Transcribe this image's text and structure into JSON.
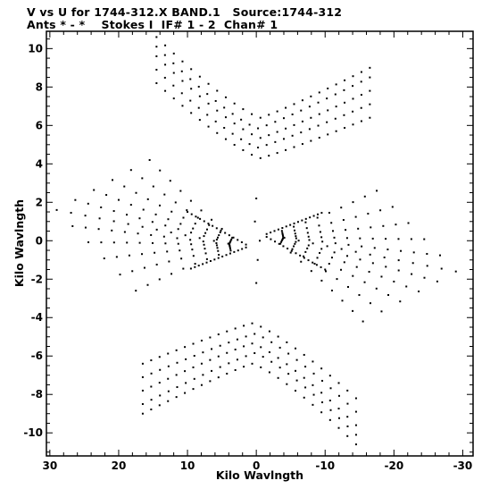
{
  "header": {
    "title_line1": "V vs U for 1744-312.X BAND.1   Source:1744-312",
    "title_line2": "Ants * - *    Stokes I  IF# 1 - 2  Chan# 1"
  },
  "chart_data": {
    "type": "scatter",
    "title": "V vs U for 1744-312.X BAND.1   Source:1744-312",
    "subtitle": "Ants * - *    Stokes I  IF# 1 - 2  Chan# 1",
    "xlabel": "Kilo Wavlngth",
    "ylabel": "Kilo Wavlngth",
    "xlim": [
      30.5,
      -31.5
    ],
    "ylim": [
      -11.2,
      10.9
    ],
    "x_reversed": true,
    "grid": false,
    "marker": "small black dots",
    "xticks": [
      30,
      20,
      10,
      0,
      -10,
      -20,
      -30
    ],
    "xtick_labels": [
      "30",
      "20",
      "10",
      "0",
      "-10",
      "-20",
      "-30"
    ],
    "yticks": [
      10,
      8,
      6,
      4,
      2,
      0,
      -2,
      -4,
      -6,
      -8,
      -10
    ],
    "ytick_labels": [
      "10",
      "8",
      "6",
      "4",
      "2",
      "0",
      "-2",
      "-4",
      "-6",
      "-8",
      "-10"
    ],
    "features": {
      "upper_arcs": {
        "description": "nested V-shaped tracks, vertex near u=0",
        "vertices_v": [
          4.3,
          4.85,
          5.35,
          5.85,
          6.4
        ],
        "left_end_u": 14.5,
        "left_end_v": [
          8.2,
          8.9,
          9.6,
          10.1,
          10.6
        ],
        "right_end_u": -16.5,
        "right_end_v": [
          6.4,
          7.1,
          7.8,
          8.5,
          9.0
        ]
      },
      "lower_arcs": {
        "description": "mirror of upper arcs through origin",
        "vertices_v": [
          -4.3,
          -4.85,
          -5.35,
          -5.85,
          -6.4
        ],
        "left_end_u": 16.5,
        "left_end_v": [
          -9.0,
          -8.5,
          -7.8,
          -7.1,
          -6.4
        ],
        "right_end_u": -14.5,
        "right_end_v": [
          -10.6,
          -10.1,
          -9.6,
          -8.9,
          -8.2
        ]
      },
      "left_lobe": {
        "description": "diamond-shaped fan of dotted radial tracks",
        "apex_u": 2.0,
        "apex_v": -0.3,
        "outer_left_u": 29.5,
        "outer_left_v": [
          1.2,
          1.9
        ],
        "top_u": 15.5,
        "top_v": 4.2,
        "bottom_u": 17.5,
        "bottom_v": -2.6
      },
      "right_lobe": {
        "description": "point reflection of the left lobe",
        "apex_u": -2.0,
        "apex_v": 0.3,
        "outer_right_u": -29.5,
        "outer_right_v": [
          -1.2,
          -1.9
        ],
        "top_u": -17.5,
        "top_v": 2.6,
        "bottom_u": -15.5,
        "bottom_v": -4.2
      },
      "center_points": [
        [
          -0.5,
          0.0
        ],
        [
          0.0,
          2.2
        ],
        [
          0.0,
          -2.2
        ],
        [
          0.2,
          1.0
        ],
        [
          -0.2,
          -1.0
        ]
      ]
    }
  }
}
